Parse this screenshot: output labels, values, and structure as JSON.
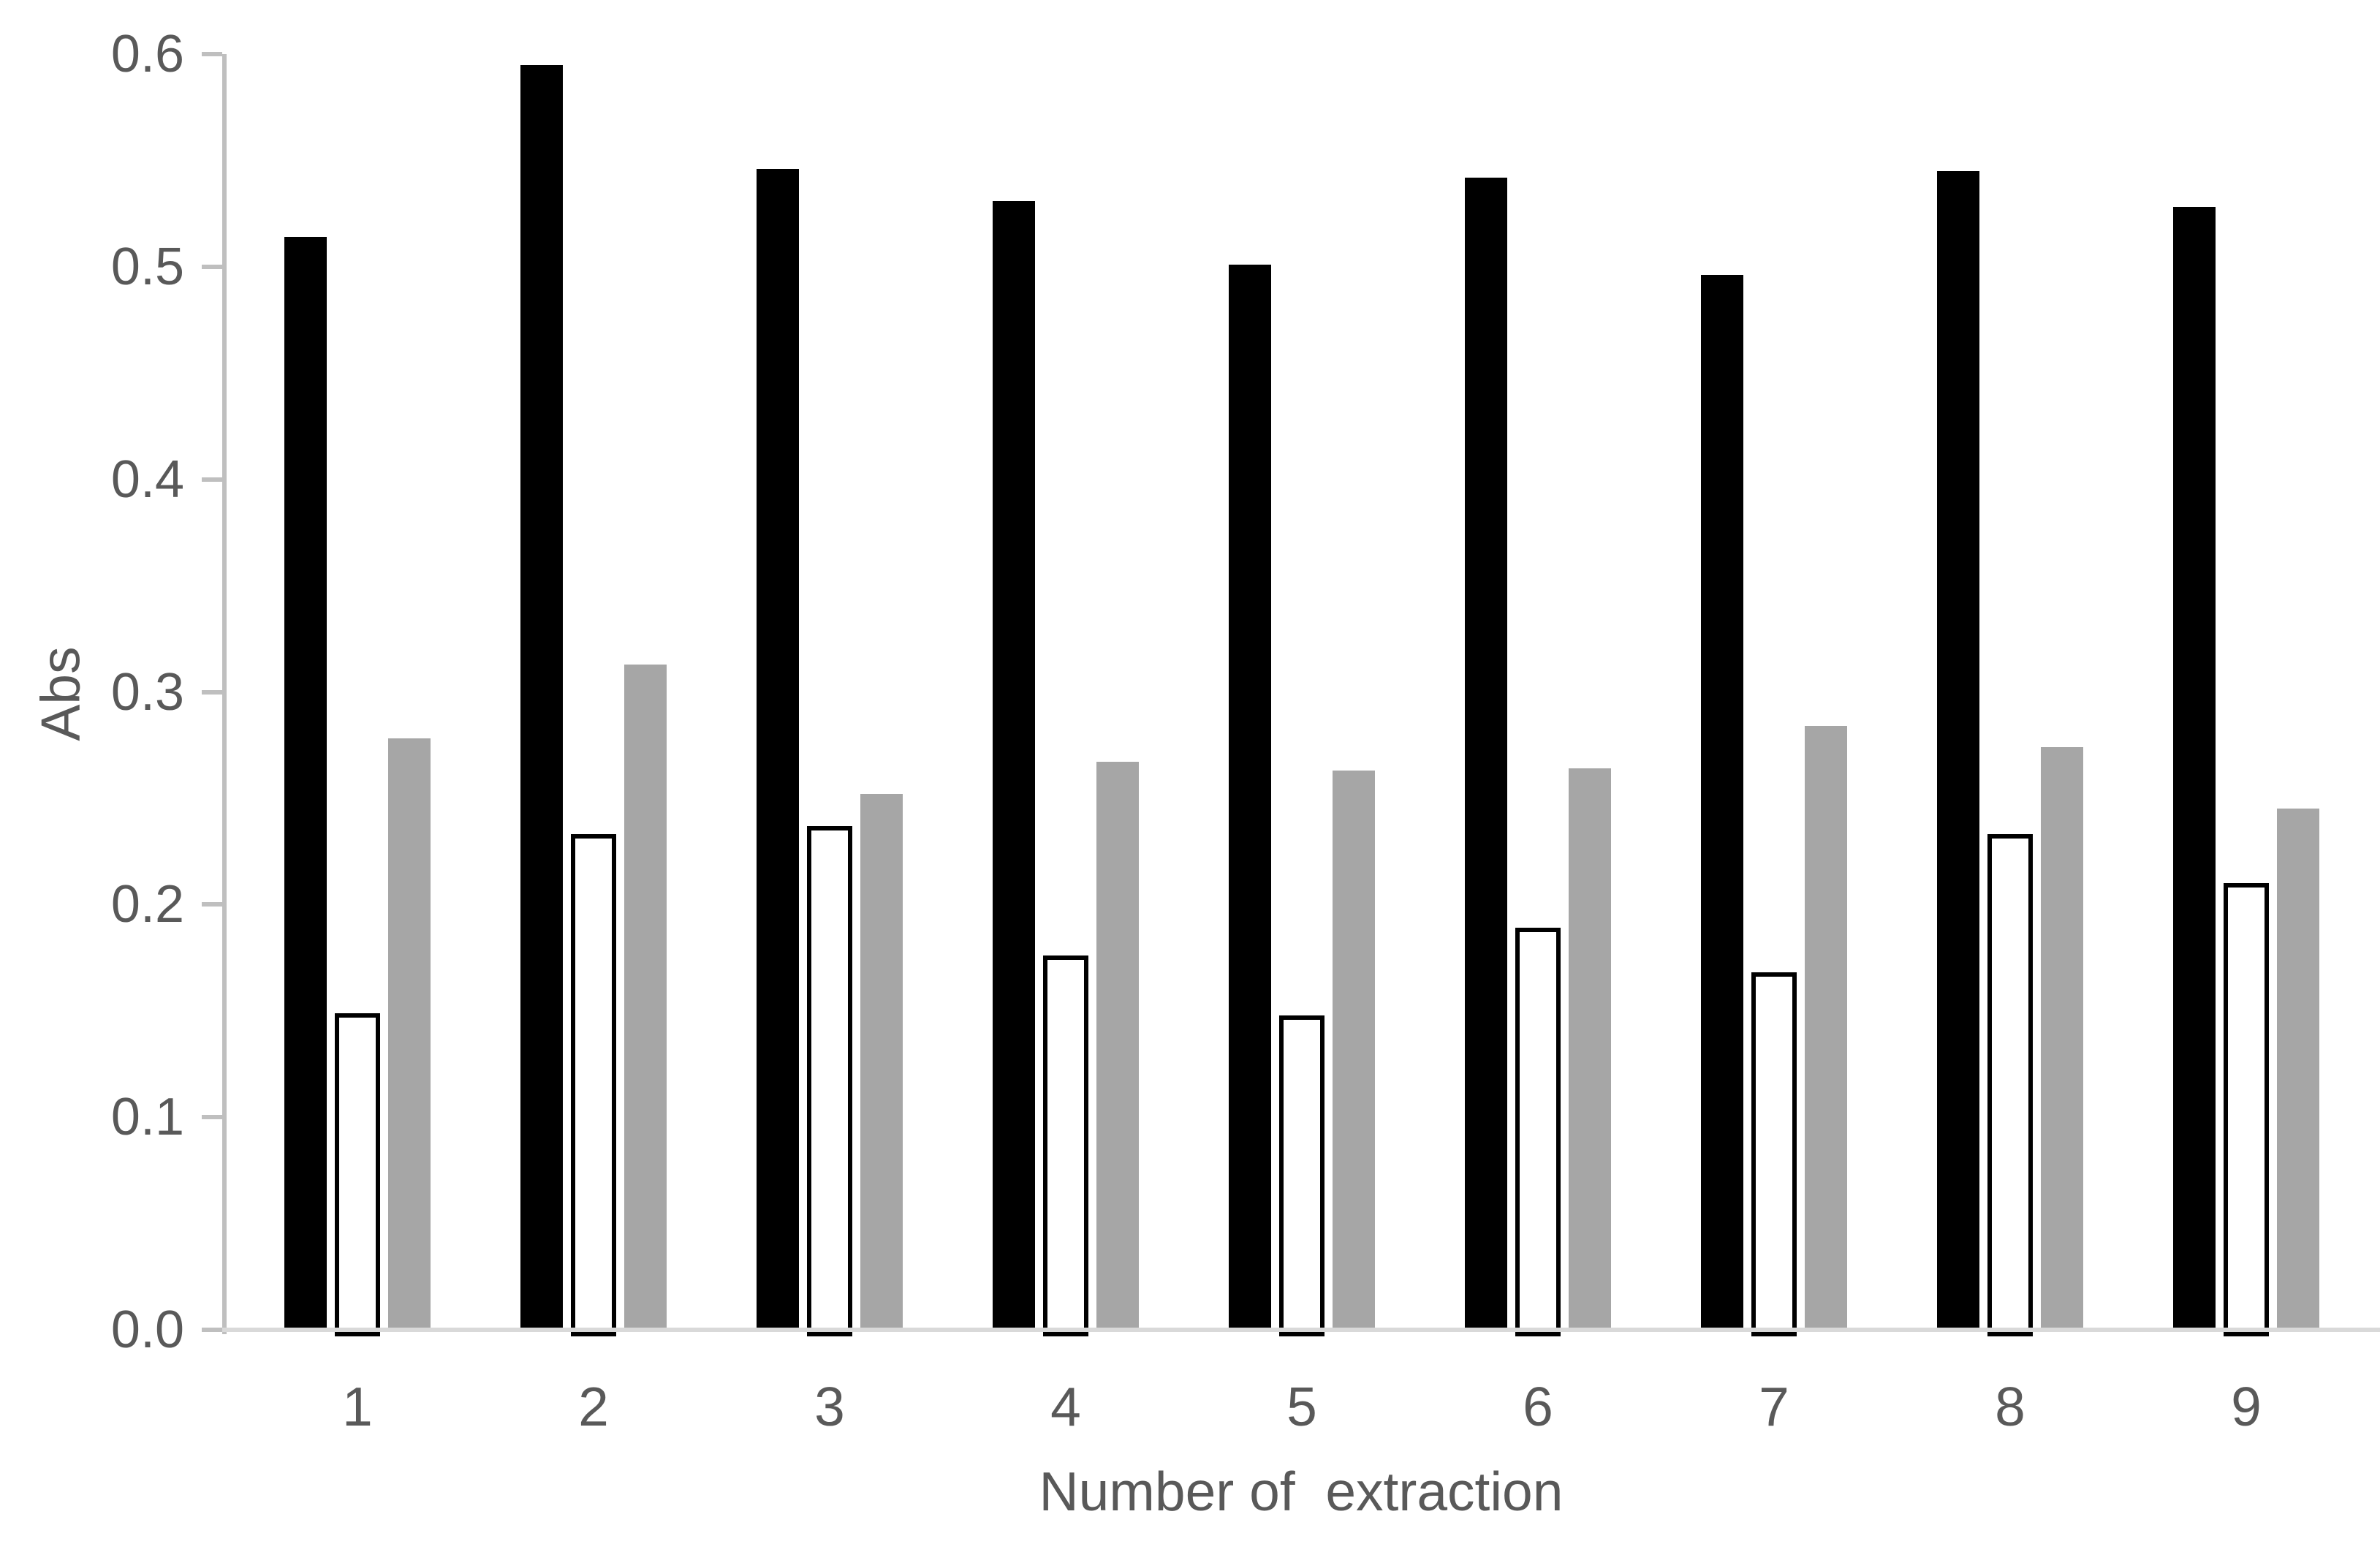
{
  "chart_data": {
    "type": "bar",
    "title": "",
    "ylabel": "Abs",
    "xlabel": "Number of  extraction",
    "categories": [
      "1",
      "2",
      "3",
      "4",
      "5",
      "6",
      "7",
      "8",
      "9"
    ],
    "series": [
      {
        "name": "black",
        "color": "#000000",
        "values": [
          0.514,
          0.595,
          0.546,
          0.531,
          0.501,
          0.542,
          0.496,
          0.545,
          0.528
        ]
      },
      {
        "name": "white",
        "color": "#ffffff",
        "border_color": "#000000",
        "values": [
          0.149,
          0.233,
          0.237,
          0.176,
          0.148,
          0.189,
          0.168,
          0.233,
          0.21
        ]
      },
      {
        "name": "gray",
        "color": "#a6a6a6",
        "values": [
          0.278,
          0.313,
          0.252,
          0.267,
          0.263,
          0.264,
          0.284,
          0.274,
          0.245
        ]
      }
    ],
    "ylim": [
      0.0,
      0.6
    ],
    "yticks": [
      "0.0",
      "0.1",
      "0.2",
      "0.3",
      "0.4",
      "0.5",
      "0.6"
    ],
    "grid": false,
    "legend": false
  },
  "colors": {
    "text": "#595959",
    "axis": "#bfbfbf",
    "baseline": "#d9d9d9",
    "background": "#ffffff"
  }
}
